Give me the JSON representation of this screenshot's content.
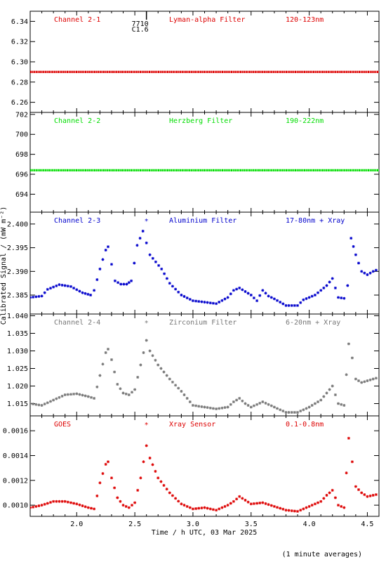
{
  "figure": {
    "ylabel": "Calibrated Signal / (mW m⁻²)",
    "xlabel": "Time / h UTC, 03 Mar 2025",
    "footnote": "(1 minute averages)",
    "marker_label": "7710 C1.6"
  },
  "chart_data": [
    {
      "type": "line",
      "channel": "Channel 2-1",
      "filter": "Lyman-alpha Filter",
      "band": "120-123nm",
      "color": "#dd0000",
      "marker": "dot",
      "ylim": [
        6.25,
        6.35
      ],
      "yticks": [
        6.26,
        6.28,
        6.3,
        6.32,
        6.34
      ],
      "ytick_labels": [
        "6.26",
        "6.28",
        "6.30",
        "6.32",
        "6.34"
      ],
      "x": [
        1.6,
        4.6
      ],
      "y": [
        6.29,
        6.29
      ]
    },
    {
      "type": "line",
      "channel": "Channel 2-2",
      "filter": "Herzberg Filter",
      "band": "190-222nm",
      "color": "#00dd00",
      "marker": "dot",
      "ylim": [
        692.2,
        702.2
      ],
      "yticks": [
        694,
        696,
        698,
        700,
        702
      ],
      "ytick_labels": [
        "694",
        "696",
        "698",
        "700",
        "702"
      ],
      "x": [
        1.6,
        4.6
      ],
      "y": [
        696.4,
        696.4
      ]
    },
    {
      "type": "scatter",
      "channel": "Channel 2-3",
      "filter": "Aluminium Filter",
      "band": "17-80nm + Xray",
      "color": "#0000cc",
      "marker": "star",
      "ylim": [
        2.381,
        2.4025
      ],
      "yticks": [
        2.385,
        2.39,
        2.395,
        2.4
      ],
      "ytick_labels": [
        "2.385",
        "2.390",
        "2.395",
        "2.400"
      ],
      "x": [
        1.6,
        1.7,
        1.75,
        1.85,
        1.95,
        2.05,
        2.12,
        2.15,
        2.2,
        2.25,
        2.27,
        2.3,
        2.33,
        2.38,
        2.43,
        2.47,
        2.52,
        2.57,
        2.6,
        2.63,
        2.68,
        2.73,
        2.8,
        2.9,
        3.0,
        3.1,
        3.2,
        3.3,
        3.35,
        3.4,
        3.5,
        3.55,
        3.6,
        3.65,
        3.7,
        3.8,
        3.9,
        3.95,
        4.05,
        4.15,
        4.2,
        4.25,
        4.3,
        4.33,
        4.36,
        4.4,
        4.45,
        4.5,
        4.55,
        4.6
      ],
      "y": [
        2.3845,
        2.3848,
        2.3862,
        2.3872,
        2.3868,
        2.3855,
        2.385,
        2.386,
        2.3905,
        2.3945,
        2.3952,
        2.3915,
        2.388,
        2.3873,
        2.3873,
        2.388,
        2.3955,
        2.3985,
        2.396,
        2.3935,
        2.392,
        2.3905,
        2.3875,
        2.385,
        2.3838,
        2.3835,
        2.3832,
        2.3845,
        2.386,
        2.3865,
        2.385,
        2.3838,
        2.386,
        2.3848,
        2.3842,
        2.3828,
        2.3828,
        2.384,
        2.385,
        2.387,
        2.3885,
        2.3845,
        2.3843,
        2.387,
        2.397,
        2.3935,
        2.39,
        2.3893,
        2.39,
        2.3905
      ]
    },
    {
      "type": "scatter",
      "channel": "Channel 2-4",
      "filter": "Zirconium Filter",
      "band": "6-20nm + Xray",
      "color": "#777777",
      "marker": "star",
      "ylim": [
        1.0115,
        1.0405
      ],
      "yticks": [
        1.015,
        1.02,
        1.025,
        1.03,
        1.035,
        1.04
      ],
      "ytick_labels": [
        "1.015",
        "1.020",
        "1.025",
        "1.030",
        "1.035",
        "1.040"
      ],
      "x": [
        1.6,
        1.7,
        1.8,
        1.9,
        2.0,
        2.1,
        2.15,
        2.2,
        2.25,
        2.27,
        2.3,
        2.35,
        2.4,
        2.45,
        2.5,
        2.55,
        2.6,
        2.63,
        2.7,
        2.8,
        2.9,
        3.0,
        3.1,
        3.2,
        3.3,
        3.35,
        3.4,
        3.45,
        3.5,
        3.6,
        3.7,
        3.8,
        3.9,
        4.0,
        4.1,
        4.15,
        4.2,
        4.25,
        4.3,
        4.34,
        4.37,
        4.4,
        4.45,
        4.5,
        4.55,
        4.6
      ],
      "y": [
        1.015,
        1.0145,
        1.016,
        1.0175,
        1.0178,
        1.017,
        1.0165,
        1.023,
        1.0295,
        1.0305,
        1.0275,
        1.0205,
        1.018,
        1.0175,
        1.019,
        1.026,
        1.033,
        1.03,
        1.026,
        1.022,
        1.0185,
        1.0145,
        1.014,
        1.0135,
        1.014,
        1.0155,
        1.0165,
        1.015,
        1.014,
        1.0155,
        1.014,
        1.0125,
        1.0125,
        1.014,
        1.016,
        1.018,
        1.02,
        1.015,
        1.0145,
        1.032,
        1.028,
        1.022,
        1.021,
        1.0215,
        1.022,
        1.0225
      ]
    },
    {
      "type": "scatter",
      "channel": "GOES",
      "filter": "Xray Sensor",
      "band": "0.1-0.8nm",
      "color": "#dd0000",
      "marker": "star",
      "ylim": [
        0.00091,
        0.00172
      ],
      "yticks": [
        0.001,
        0.0012,
        0.0014,
        0.0016
      ],
      "ytick_labels": [
        "0.0010",
        "0.0012",
        "0.0014",
        "0.0016"
      ],
      "x": [
        1.6,
        1.7,
        1.8,
        1.9,
        2.0,
        2.1,
        2.15,
        2.2,
        2.25,
        2.27,
        2.3,
        2.35,
        2.4,
        2.45,
        2.5,
        2.55,
        2.6,
        2.63,
        2.7,
        2.8,
        2.9,
        3.0,
        3.1,
        3.2,
        3.3,
        3.35,
        3.4,
        3.45,
        3.5,
        3.6,
        3.7,
        3.8,
        3.9,
        4.0,
        4.1,
        4.15,
        4.2,
        4.25,
        4.3,
        4.34,
        4.37,
        4.4,
        4.45,
        4.5,
        4.55,
        4.6
      ],
      "y": [
        0.00098,
        0.001,
        0.00103,
        0.00103,
        0.00101,
        0.00098,
        0.00097,
        0.00118,
        0.00133,
        0.00135,
        0.00122,
        0.00106,
        0.001,
        0.00098,
        0.00102,
        0.00122,
        0.00148,
        0.00138,
        0.00122,
        0.0011,
        0.00101,
        0.00097,
        0.00098,
        0.00096,
        0.001,
        0.00103,
        0.00107,
        0.00104,
        0.00101,
        0.00102,
        0.00099,
        0.00096,
        0.00095,
        0.00099,
        0.00103,
        0.00108,
        0.00112,
        0.001,
        0.00098,
        0.00154,
        0.00135,
        0.00115,
        0.0011,
        0.00107,
        0.00108,
        0.00109
      ]
    }
  ],
  "xaxis": {
    "xlim": [
      1.6,
      4.6
    ],
    "ticks": [
      2.0,
      2.5,
      3.0,
      3.5,
      4.0,
      4.5
    ],
    "tick_labels": [
      "2.0",
      "2.5",
      "3.0",
      "3.5",
      "4.0",
      "4.5"
    ],
    "marker_x": 2.6
  }
}
